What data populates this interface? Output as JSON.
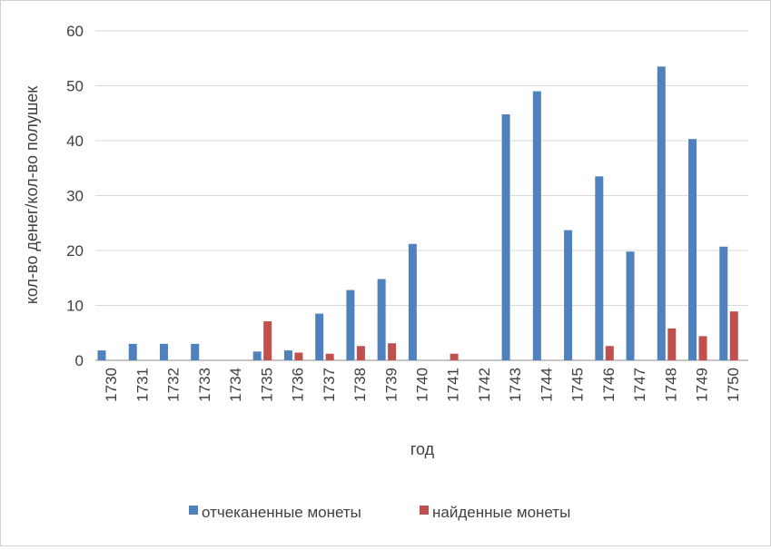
{
  "chart_data": {
    "type": "bar",
    "categories": [
      "1730",
      "1731",
      "1732",
      "1733",
      "1734",
      "1735",
      "1736",
      "1737",
      "1738",
      "1739",
      "1740",
      "1741",
      "1742",
      "1743",
      "1744",
      "1745",
      "1746",
      "1747",
      "1748",
      "1749",
      "1750"
    ],
    "series": [
      {
        "name": "отчеканенные монеты",
        "color": "#4f81bd",
        "values": [
          1.8,
          3,
          3,
          3,
          0,
          1.6,
          1.8,
          8.5,
          12.8,
          14.8,
          21.2,
          0,
          0,
          44.8,
          49,
          23.7,
          33.5,
          19.8,
          53.5,
          40.3,
          20.7
        ]
      },
      {
        "name": "найденные монеты",
        "color": "#c0504d",
        "values": [
          0,
          0,
          0,
          0,
          0,
          7.1,
          1.4,
          1.2,
          2.6,
          3.1,
          0,
          1.2,
          0,
          0,
          0,
          0,
          2.6,
          0,
          5.8,
          4.4,
          8.9
        ]
      }
    ],
    "xlabel": "год",
    "ylabel": "кол-во денег/кол-во полушек",
    "ylim": [
      0,
      60
    ],
    "yticks": [
      0,
      10,
      20,
      30,
      40,
      50,
      60
    ],
    "grid": true,
    "legend_position": "bottom"
  }
}
